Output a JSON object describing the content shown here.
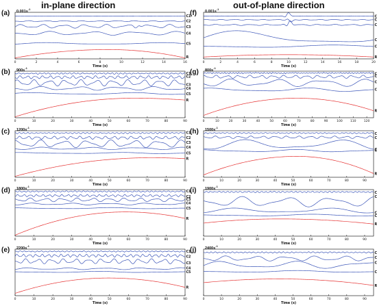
{
  "columns": {
    "left_title": "in-plane direction",
    "right_title": "out-of-plane direction"
  },
  "colors": {
    "imf": "#3b55b8",
    "residual": "#e53030",
    "axis": "#000000",
    "background": "#ffffff"
  },
  "chart_data": [
    {
      "panel": "(a)",
      "type": "line",
      "rate": "0.001s",
      "rate_exp": "-1",
      "xlabel": "Time (s)",
      "xlim": [
        0,
        16
      ],
      "xticks": [
        0,
        2,
        4,
        6,
        8,
        10,
        12,
        14,
        16
      ],
      "series": [
        {
          "name": "C1",
          "kind": "noise",
          "offset": 0.92,
          "amp": 0.003,
          "freq": 2.0
        },
        {
          "name": "C2",
          "kind": "wave",
          "offset": 0.81,
          "amp": 0.008,
          "freq": 0.6
        },
        {
          "name": "C3",
          "kind": "wave",
          "offset": 0.7,
          "amp": 0.03,
          "freq": 0.5,
          "bump_at": 11.5,
          "bump": 0.05
        },
        {
          "name": "C4",
          "kind": "wave",
          "offset": 0.55,
          "amp": 0.03,
          "freq": 0.25
        },
        {
          "name": "C5",
          "kind": "wave",
          "offset": 0.33,
          "amp": 0.015,
          "freq": 0.1
        },
        {
          "name": "R",
          "kind": "residual",
          "y0": 0.02,
          "peak": 0.2,
          "peak_at": 0.55,
          "y1": 0.02
        }
      ]
    },
    {
      "panel": "(b)",
      "type": "line",
      "rate": "900s",
      "rate_exp": "-1",
      "xlabel": "Time (s)",
      "xlim": [
        0,
        90
      ],
      "xticks": [
        0,
        10,
        20,
        30,
        40,
        50,
        60,
        70,
        80,
        90
      ],
      "series": [
        {
          "name": "C1",
          "kind": "noise",
          "offset": 0.95,
          "amp": 0.012,
          "freq": 3.0
        },
        {
          "name": "C2",
          "kind": "wave",
          "offset": 0.87,
          "amp": 0.025,
          "freq": 0.25
        },
        {
          "name": "C3",
          "kind": "wave",
          "offset": 0.75,
          "amp": 0.05,
          "freq": 0.12
        },
        {
          "name": "C4",
          "kind": "wave",
          "offset": 0.63,
          "amp": 0.03,
          "freq": 0.05
        },
        {
          "name": "C5",
          "kind": "wave",
          "offset": 0.52,
          "amp": 0.015,
          "freq": 0.02
        },
        {
          "name": "R",
          "kind": "residual",
          "y0": 0.02,
          "peak": 0.42,
          "peak_at": 0.7,
          "y1": 0.38
        }
      ]
    },
    {
      "panel": "(c)",
      "type": "line",
      "rate": "1200s",
      "rate_exp": "-1",
      "xlabel": "Time (s)",
      "xlim": [
        0,
        90
      ],
      "xticks": [
        0,
        10,
        20,
        30,
        40,
        50,
        60,
        70,
        80,
        90
      ],
      "series": [
        {
          "name": "C1",
          "kind": "noise",
          "offset": 0.95,
          "amp": 0.012,
          "freq": 3.0
        },
        {
          "name": "C2",
          "kind": "wave",
          "offset": 0.85,
          "amp": 0.025,
          "freq": 0.22
        },
        {
          "name": "C3",
          "kind": "wave",
          "offset": 0.72,
          "amp": 0.06,
          "freq": 0.08
        },
        {
          "name": "C4",
          "kind": "wave",
          "offset": 0.62,
          "amp": 0.02,
          "freq": 0.04
        },
        {
          "name": "C5",
          "kind": "wave",
          "offset": 0.52,
          "amp": 0.01,
          "freq": 0.02
        },
        {
          "name": "R",
          "kind": "residual",
          "y0": 0.02,
          "peak": 0.42,
          "peak_at": 0.8,
          "y1": 0.4
        }
      ]
    },
    {
      "panel": "(d)",
      "type": "line",
      "rate": "1800s",
      "rate_exp": "-1",
      "xlabel": "Time (s)",
      "xlim": [
        0,
        90
      ],
      "xticks": [
        0,
        10,
        20,
        30,
        40,
        50,
        60,
        70,
        80,
        90
      ],
      "series": [
        {
          "name": "C1",
          "kind": "noise",
          "offset": 0.96,
          "amp": 0.012,
          "freq": 3.0
        },
        {
          "name": "C2",
          "kind": "wave",
          "offset": 0.87,
          "amp": 0.02,
          "freq": 0.3
        },
        {
          "name": "C3",
          "kind": "wave",
          "offset": 0.78,
          "amp": 0.03,
          "freq": 0.12
        },
        {
          "name": "C4",
          "kind": "wave",
          "offset": 0.69,
          "amp": 0.015,
          "freq": 0.05
        },
        {
          "name": "C5",
          "kind": "wave",
          "offset": 0.6,
          "amp": 0.01,
          "freq": 0.02
        },
        {
          "name": "R",
          "kind": "residual",
          "y0": 0.02,
          "peak": 0.52,
          "peak_at": 0.65,
          "y1": 0.38
        }
      ]
    },
    {
      "panel": "(e)",
      "type": "line",
      "rate": "2200s",
      "rate_exp": "-1",
      "xlabel": "Time (s)",
      "xlim": [
        0,
        90
      ],
      "xticks": [
        0,
        10,
        20,
        30,
        40,
        50,
        60,
        70,
        80,
        90
      ],
      "series": [
        {
          "name": "C1",
          "kind": "noise",
          "offset": 0.95,
          "amp": 0.01,
          "freq": 3.0
        },
        {
          "name": "C2",
          "kind": "wave",
          "offset": 0.86,
          "amp": 0.025,
          "freq": 0.3
        },
        {
          "name": "C3",
          "kind": "wave",
          "offset": 0.74,
          "amp": 0.04,
          "freq": 0.15
        },
        {
          "name": "C4",
          "kind": "wave",
          "offset": 0.58,
          "amp": 0.015,
          "freq": 0.05
        },
        {
          "name": "C5",
          "kind": "wave",
          "offset": 0.51,
          "amp": 0.01,
          "freq": 0.02
        },
        {
          "name": "R",
          "kind": "residual",
          "y0": 0.05,
          "peak": 0.38,
          "peak_at": 0.55,
          "y1": 0.18
        }
      ]
    },
    {
      "panel": "(f)",
      "type": "line",
      "rate": "0.001s",
      "rate_exp": "-1",
      "xlabel": "Time (s)",
      "xlim": [
        0,
        20
      ],
      "xticks": [
        0,
        2,
        4,
        6,
        8,
        10,
        12,
        14,
        16,
        18,
        20
      ],
      "series": [
        {
          "name": "C1",
          "kind": "noise",
          "offset": 0.92,
          "amp": 0.003,
          "freq": 2.0,
          "bump_at": 9.8,
          "bump": 0.07
        },
        {
          "name": "C2",
          "kind": "wave",
          "offset": 0.84,
          "amp": 0.006,
          "freq": 0.6,
          "bump_at": 10.1,
          "bump": -0.05
        },
        {
          "name": "C3",
          "kind": "wave",
          "offset": 0.73,
          "amp": 0.01,
          "freq": 0.5,
          "bump_at": 10.0,
          "bump": 0.1
        },
        {
          "name": "C4",
          "kind": "wave",
          "offset": 0.45,
          "amp": 0.12,
          "freq": 0.05
        },
        {
          "name": "C5",
          "kind": "wave",
          "offset": 0.27,
          "amp": 0.02,
          "freq": 0.05
        },
        {
          "name": "R",
          "kind": "residual",
          "y0": 0.04,
          "peak": 0.09,
          "peak_at": 0.5,
          "y1": 0.04
        }
      ]
    },
    {
      "panel": "(g)",
      "type": "line",
      "rate": "800s",
      "rate_exp": "-1",
      "xlabel": "Time (s)",
      "xlim": [
        0,
        125
      ],
      "xticks": [
        0,
        10,
        20,
        30,
        40,
        50,
        60,
        70,
        80,
        90,
        100,
        110,
        120
      ],
      "series": [
        {
          "name": "C1",
          "kind": "noise",
          "offset": 0.96,
          "amp": 0.012,
          "freq": 2.5
        },
        {
          "name": "C2",
          "kind": "wave",
          "offset": 0.88,
          "amp": 0.025,
          "freq": 0.12
        },
        {
          "name": "C3",
          "kind": "wave",
          "offset": 0.75,
          "amp": 0.06,
          "freq": 0.03
        },
        {
          "name": "C4",
          "kind": "wave",
          "offset": 0.6,
          "amp": 0.03,
          "freq": 0.015
        },
        {
          "name": "R",
          "kind": "residual",
          "y0": 0.05,
          "peak": 0.42,
          "peak_at": 0.55,
          "y1": 0.15
        }
      ]
    },
    {
      "panel": "(h)",
      "type": "line",
      "rate": "1500s",
      "rate_exp": "-1",
      "xlabel": "Time (s)",
      "xlim": [
        0,
        95
      ],
      "xticks": [
        0,
        10,
        20,
        30,
        40,
        50,
        60,
        70,
        80,
        90
      ],
      "series": [
        {
          "name": "C1",
          "kind": "noise",
          "offset": 0.95,
          "amp": 0.01,
          "freq": 3.0
        },
        {
          "name": "C2",
          "kind": "wave",
          "offset": 0.86,
          "amp": 0.02,
          "freq": 0.15
        },
        {
          "name": "C3",
          "kind": "wave",
          "offset": 0.7,
          "amp": 0.08,
          "freq": 0.02
        },
        {
          "name": "C4",
          "kind": "wave",
          "offset": 0.57,
          "amp": 0.02,
          "freq": 0.02
        },
        {
          "name": "R",
          "kind": "residual",
          "y0": 0.05,
          "peak": 0.45,
          "peak_at": 0.55,
          "y1": 0.08
        }
      ]
    },
    {
      "panel": "(i)",
      "type": "line",
      "rate": "1900s",
      "rate_exp": "-1",
      "xlabel": "Time (s)",
      "xlim": [
        0,
        95
      ],
      "xticks": [
        0,
        10,
        20,
        30,
        40,
        50,
        60,
        70,
        80,
        90
      ],
      "series": [
        {
          "name": "C1",
          "kind": "noise",
          "offset": 0.95,
          "amp": 0.012,
          "freq": 3.0
        },
        {
          "name": "C2",
          "kind": "wave",
          "offset": 0.74,
          "amp": 0.08,
          "freq": 0.04
        },
        {
          "name": "C3",
          "kind": "wave",
          "offset": 0.55,
          "amp": 0.04,
          "freq": 0.02
        },
        {
          "name": "C4",
          "kind": "wave",
          "offset": 0.45,
          "amp": 0.015,
          "freq": 0.015
        },
        {
          "name": "R",
          "kind": "residual",
          "y0": 0.28,
          "peak": 0.37,
          "peak_at": 0.45,
          "y1": 0.26
        }
      ]
    },
    {
      "panel": "(j)",
      "type": "line",
      "rate": "2400s",
      "rate_exp": "-1",
      "xlabel": "Time (s)",
      "xlim": [
        0,
        95
      ],
      "xticks": [
        0,
        10,
        20,
        30,
        40,
        50,
        60,
        70,
        80,
        90
      ],
      "series": [
        {
          "name": "C1",
          "kind": "noise",
          "offset": 0.93,
          "amp": 0.012,
          "freq": 3.0
        },
        {
          "name": "C2",
          "kind": "wave",
          "offset": 0.8,
          "amp": 0.04,
          "freq": 0.06
        },
        {
          "name": "C3",
          "kind": "wave",
          "offset": 0.66,
          "amp": 0.06,
          "freq": 0.025
        },
        {
          "name": "C4",
          "kind": "wave",
          "offset": 0.52,
          "amp": 0.015,
          "freq": 0.015
        },
        {
          "name": "R",
          "kind": "residual",
          "y0": 0.28,
          "peak": 0.36,
          "peak_at": 0.45,
          "y1": 0.22
        }
      ]
    }
  ]
}
